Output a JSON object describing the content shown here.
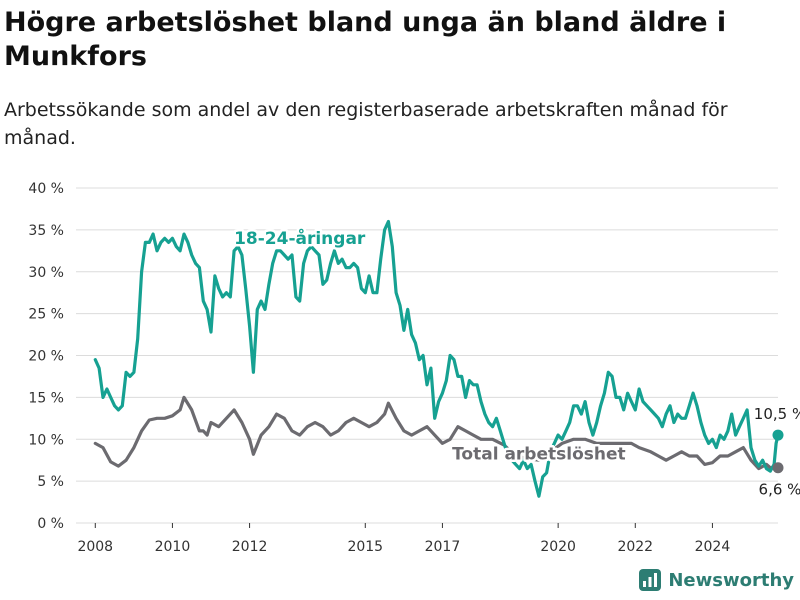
{
  "title": "Högre arbetslöshet bland unga än bland äldre i Munkfors",
  "subtitle": "Arbetssökande som andel av den registerbaserade arbetskraften månad för månad.",
  "brand": "Newsworthy",
  "colors": {
    "young": "#16a192",
    "total": "#6c6b70",
    "grid": "#dcdcdc"
  },
  "chart_data": {
    "type": "line",
    "title": "Högre arbetslöshet bland unga än bland äldre i Munkfors",
    "subtitle": "Arbetssökande som andel av den registerbaserade arbetskraften månad för månad.",
    "x_unit": "year",
    "xlim": [
      2007.5,
      2025.7
    ],
    "ylim": [
      0,
      40
    ],
    "x_ticks": [
      2008,
      2010,
      2012,
      2015,
      2017,
      2020,
      2022,
      2024
    ],
    "y_ticks": [
      {
        "value": 0,
        "label": "0 %"
      },
      {
        "value": 5,
        "label": "5 %"
      },
      {
        "value": 10,
        "label": "10 %"
      },
      {
        "value": 15,
        "label": "15 %"
      },
      {
        "value": 20,
        "label": "20 %"
      },
      {
        "value": 25,
        "label": "25 %"
      },
      {
        "value": 30,
        "label": "30 %"
      },
      {
        "value": 35,
        "label": "35 %"
      },
      {
        "value": 40,
        "label": "40 %"
      }
    ],
    "grid": true,
    "series": [
      {
        "name": "18-24-åringar",
        "color": "#16a192",
        "end_label": "10,5 %",
        "points": [
          [
            2008.0,
            19.5
          ],
          [
            2008.1,
            18.5
          ],
          [
            2008.2,
            15
          ],
          [
            2008.3,
            16
          ],
          [
            2008.4,
            15
          ],
          [
            2008.5,
            14
          ],
          [
            2008.6,
            13.5
          ],
          [
            2008.7,
            14
          ],
          [
            2008.8,
            18
          ],
          [
            2008.9,
            17.5
          ],
          [
            2009.0,
            18
          ],
          [
            2009.1,
            22
          ],
          [
            2009.2,
            30
          ],
          [
            2009.3,
            33.5
          ],
          [
            2009.4,
            33.5
          ],
          [
            2009.5,
            34.5
          ],
          [
            2009.6,
            32.5
          ],
          [
            2009.7,
            33.5
          ],
          [
            2009.8,
            34
          ],
          [
            2009.9,
            33.5
          ],
          [
            2010.0,
            34
          ],
          [
            2010.1,
            33
          ],
          [
            2010.2,
            32.5
          ],
          [
            2010.3,
            34.5
          ],
          [
            2010.4,
            33.5
          ],
          [
            2010.5,
            32
          ],
          [
            2010.6,
            31
          ],
          [
            2010.7,
            30.5
          ],
          [
            2010.8,
            26.5
          ],
          [
            2010.9,
            25.5
          ],
          [
            2011.0,
            22.8
          ],
          [
            2011.1,
            29.5
          ],
          [
            2011.2,
            28
          ],
          [
            2011.3,
            27
          ],
          [
            2011.4,
            27.5
          ],
          [
            2011.5,
            27
          ],
          [
            2011.6,
            32.5
          ],
          [
            2011.7,
            33
          ],
          [
            2011.8,
            32
          ],
          [
            2011.9,
            28
          ],
          [
            2012.0,
            23.5
          ],
          [
            2012.1,
            18
          ],
          [
            2012.2,
            25.5
          ],
          [
            2012.3,
            26.5
          ],
          [
            2012.4,
            25.5
          ],
          [
            2012.5,
            28.5
          ],
          [
            2012.6,
            31
          ],
          [
            2012.7,
            32.5
          ],
          [
            2012.8,
            32.5
          ],
          [
            2012.9,
            32
          ],
          [
            2013.0,
            31.5
          ],
          [
            2013.1,
            32
          ],
          [
            2013.2,
            27
          ],
          [
            2013.3,
            26.5
          ],
          [
            2013.4,
            31
          ],
          [
            2013.5,
            32.5
          ],
          [
            2013.6,
            33
          ],
          [
            2013.7,
            32.5
          ],
          [
            2013.8,
            32
          ],
          [
            2013.9,
            28.5
          ],
          [
            2014.0,
            29
          ],
          [
            2014.1,
            31
          ],
          [
            2014.2,
            32.5
          ],
          [
            2014.3,
            31
          ],
          [
            2014.4,
            31.5
          ],
          [
            2014.5,
            30.5
          ],
          [
            2014.6,
            30.5
          ],
          [
            2014.7,
            31
          ],
          [
            2014.8,
            30.5
          ],
          [
            2014.9,
            28
          ],
          [
            2015.0,
            27.5
          ],
          [
            2015.1,
            29.5
          ],
          [
            2015.2,
            27.5
          ],
          [
            2015.3,
            27.5
          ],
          [
            2015.4,
            31.5
          ],
          [
            2015.5,
            35
          ],
          [
            2015.6,
            36
          ],
          [
            2015.7,
            33
          ],
          [
            2015.8,
            27.5
          ],
          [
            2015.9,
            26
          ],
          [
            2016.0,
            23
          ],
          [
            2016.1,
            25.5
          ],
          [
            2016.2,
            22.5
          ],
          [
            2016.3,
            21.5
          ],
          [
            2016.4,
            19.5
          ],
          [
            2016.5,
            20
          ],
          [
            2016.6,
            16.5
          ],
          [
            2016.7,
            18.5
          ],
          [
            2016.8,
            12.5
          ],
          [
            2016.9,
            14.5
          ],
          [
            2017.0,
            15.5
          ],
          [
            2017.1,
            17
          ],
          [
            2017.2,
            20
          ],
          [
            2017.3,
            19.5
          ],
          [
            2017.4,
            17.5
          ],
          [
            2017.5,
            17.5
          ],
          [
            2017.6,
            15
          ],
          [
            2017.7,
            17
          ],
          [
            2017.8,
            16.5
          ],
          [
            2017.9,
            16.5
          ],
          [
            2018.0,
            14.5
          ],
          [
            2018.1,
            13
          ],
          [
            2018.2,
            12
          ],
          [
            2018.3,
            11.5
          ],
          [
            2018.4,
            12.5
          ],
          [
            2018.5,
            11
          ],
          [
            2018.6,
            9.5
          ],
          [
            2018.7,
            8
          ],
          [
            2018.8,
            7.5
          ],
          [
            2018.9,
            7
          ],
          [
            2019.0,
            6.5
          ],
          [
            2019.1,
            7.5
          ],
          [
            2019.2,
            6.5
          ],
          [
            2019.3,
            7
          ],
          [
            2019.4,
            5
          ],
          [
            2019.5,
            3.2
          ],
          [
            2019.6,
            5.5
          ],
          [
            2019.7,
            6
          ],
          [
            2019.8,
            8.5
          ],
          [
            2019.9,
            9.5
          ],
          [
            2020.0,
            10.5
          ],
          [
            2020.1,
            10
          ],
          [
            2020.2,
            11
          ],
          [
            2020.3,
            12
          ],
          [
            2020.4,
            14
          ],
          [
            2020.5,
            14
          ],
          [
            2020.6,
            13
          ],
          [
            2020.7,
            14.5
          ],
          [
            2020.8,
            12
          ],
          [
            2020.9,
            10.5
          ],
          [
            2021.0,
            12
          ],
          [
            2021.1,
            14
          ],
          [
            2021.2,
            15.5
          ],
          [
            2021.3,
            18
          ],
          [
            2021.4,
            17.5
          ],
          [
            2021.5,
            15
          ],
          [
            2021.6,
            15
          ],
          [
            2021.7,
            13.5
          ],
          [
            2021.8,
            15.5
          ],
          [
            2021.9,
            14.5
          ],
          [
            2022.0,
            13.5
          ],
          [
            2022.1,
            16
          ],
          [
            2022.2,
            14.5
          ],
          [
            2022.3,
            14
          ],
          [
            2022.4,
            13.5
          ],
          [
            2022.5,
            13
          ],
          [
            2022.6,
            12.5
          ],
          [
            2022.7,
            11.5
          ],
          [
            2022.8,
            13
          ],
          [
            2022.9,
            14
          ],
          [
            2023.0,
            12
          ],
          [
            2023.1,
            13
          ],
          [
            2023.2,
            12.5
          ],
          [
            2023.3,
            12.5
          ],
          [
            2023.4,
            14
          ],
          [
            2023.5,
            15.5
          ],
          [
            2023.6,
            14
          ],
          [
            2023.7,
            12
          ],
          [
            2023.8,
            10.5
          ],
          [
            2023.9,
            9.5
          ],
          [
            2024.0,
            10
          ],
          [
            2024.1,
            9
          ],
          [
            2024.2,
            10.5
          ],
          [
            2024.3,
            10
          ],
          [
            2024.4,
            11
          ],
          [
            2024.5,
            13
          ],
          [
            2024.6,
            10.5
          ],
          [
            2024.7,
            11.5
          ],
          [
            2024.8,
            12.5
          ],
          [
            2024.9,
            13.5
          ],
          [
            2025.0,
            9
          ],
          [
            2025.1,
            7.5
          ],
          [
            2025.2,
            6.8
          ],
          [
            2025.3,
            7.5
          ],
          [
            2025.4,
            6.5
          ],
          [
            2025.5,
            6.2
          ],
          [
            2025.6,
            7
          ],
          [
            2025.65,
            9.5
          ],
          [
            2025.7,
            10.5
          ]
        ]
      },
      {
        "name": "Total arbetslöshet",
        "color": "#6c6b70",
        "end_label": "6,6 %",
        "points": [
          [
            2008.0,
            9.5
          ],
          [
            2008.2,
            9
          ],
          [
            2008.4,
            7.3
          ],
          [
            2008.6,
            6.8
          ],
          [
            2008.8,
            7.5
          ],
          [
            2009.0,
            9
          ],
          [
            2009.2,
            11
          ],
          [
            2009.4,
            12.3
          ],
          [
            2009.6,
            12.5
          ],
          [
            2009.8,
            12.5
          ],
          [
            2010.0,
            12.8
          ],
          [
            2010.2,
            13.5
          ],
          [
            2010.3,
            15
          ],
          [
            2010.5,
            13.5
          ],
          [
            2010.7,
            11
          ],
          [
            2010.8,
            11
          ],
          [
            2010.9,
            10.5
          ],
          [
            2011.0,
            12
          ],
          [
            2011.2,
            11.5
          ],
          [
            2011.4,
            12.5
          ],
          [
            2011.6,
            13.5
          ],
          [
            2011.8,
            12
          ],
          [
            2012.0,
            10
          ],
          [
            2012.1,
            8.2
          ],
          [
            2012.3,
            10.5
          ],
          [
            2012.5,
            11.5
          ],
          [
            2012.7,
            13
          ],
          [
            2012.9,
            12.5
          ],
          [
            2013.1,
            11
          ],
          [
            2013.3,
            10.5
          ],
          [
            2013.5,
            11.5
          ],
          [
            2013.7,
            12
          ],
          [
            2013.9,
            11.5
          ],
          [
            2014.1,
            10.5
          ],
          [
            2014.3,
            11
          ],
          [
            2014.5,
            12
          ],
          [
            2014.7,
            12.5
          ],
          [
            2014.9,
            12
          ],
          [
            2015.1,
            11.5
          ],
          [
            2015.3,
            12
          ],
          [
            2015.5,
            13
          ],
          [
            2015.6,
            14.3
          ],
          [
            2015.8,
            12.5
          ],
          [
            2016.0,
            11
          ],
          [
            2016.2,
            10.5
          ],
          [
            2016.4,
            11
          ],
          [
            2016.6,
            11.5
          ],
          [
            2016.8,
            10.5
          ],
          [
            2017.0,
            9.5
          ],
          [
            2017.2,
            10
          ],
          [
            2017.4,
            11.5
          ],
          [
            2017.6,
            11
          ],
          [
            2017.8,
            10.5
          ],
          [
            2018.0,
            10
          ],
          [
            2018.3,
            10
          ],
          [
            2018.6,
            9.3
          ],
          [
            2018.9,
            8
          ],
          [
            2019.2,
            7.7
          ],
          [
            2019.5,
            7.5
          ],
          [
            2019.8,
            8.5
          ],
          [
            2020.1,
            9.5
          ],
          [
            2020.4,
            10
          ],
          [
            2020.7,
            10
          ],
          [
            2021.0,
            9.5
          ],
          [
            2021.3,
            9.5
          ],
          [
            2021.6,
            9.5
          ],
          [
            2021.9,
            9.5
          ],
          [
            2022.1,
            9
          ],
          [
            2022.4,
            8.5
          ],
          [
            2022.6,
            8
          ],
          [
            2022.8,
            7.5
          ],
          [
            2023.0,
            8
          ],
          [
            2023.2,
            8.5
          ],
          [
            2023.4,
            8
          ],
          [
            2023.6,
            8
          ],
          [
            2023.8,
            7
          ],
          [
            2024.0,
            7.2
          ],
          [
            2024.2,
            8
          ],
          [
            2024.4,
            8
          ],
          [
            2024.6,
            8.5
          ],
          [
            2024.8,
            9
          ],
          [
            2025.0,
            7.5
          ],
          [
            2025.2,
            6.5
          ],
          [
            2025.4,
            7
          ],
          [
            2025.5,
            6.6
          ],
          [
            2025.7,
            6.6
          ]
        ]
      }
    ]
  }
}
